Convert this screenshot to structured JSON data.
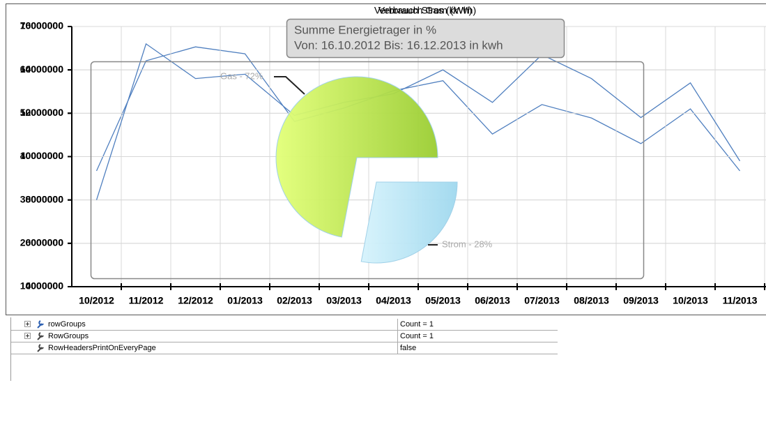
{
  "chart_data": [
    {
      "type": "line",
      "title": "Verbrauch Gas (kWh)",
      "categories": [
        "10/2012",
        "11/2012",
        "12/2012",
        "01/2013",
        "02/2013",
        "03/2013",
        "04/2013",
        "05/2013",
        "06/2013",
        "07/2013",
        "08/2013",
        "09/2013",
        "10/2013",
        "11/2013"
      ],
      "values": [
        36700000,
        62100000,
        65300000,
        63700000,
        48100000,
        51200000,
        55200000,
        57500000,
        45200000,
        52000000,
        48900000,
        43000000,
        51000000,
        36700000
      ],
      "color": "#4f7fbf",
      "ylim": [
        10000000,
        70000000
      ],
      "yticks": [
        10000000,
        20000000,
        30000000,
        40000000,
        50000000,
        60000000,
        70000000
      ],
      "grid": true
    },
    {
      "type": "line",
      "title": "Verbrauch Strom (kWh)",
      "categories": [
        "10/2012",
        "11/2012",
        "12/2012",
        "01/2013",
        "02/2013",
        "03/2013",
        "04/2013",
        "05/2013",
        "06/2013",
        "07/2013",
        "08/2013",
        "09/2013",
        "10/2013",
        "11/2013"
      ],
      "values": [
        8000000,
        15200000,
        13600000,
        13800000,
        11900000,
        12500000,
        12900000,
        14000000,
        12500000,
        14700000,
        13600000,
        11800000,
        13400000,
        9800000
      ],
      "color": "#4f7fbf",
      "ylim": [
        4000000,
        16000000
      ],
      "yticks": [
        4000000,
        6000000,
        8000000,
        10000000,
        12000000,
        14000000,
        16000000
      ],
      "grid": true
    },
    {
      "type": "pie",
      "title": [
        "Summe Energietrager in %",
        "Von: 16.10.2012 Bis: 16.12.2013 in kwh"
      ],
      "categories": [
        "Gas",
        "Strom"
      ],
      "values": [
        72,
        28
      ],
      "value_labels": [
        "Gas - 72%",
        "Strom - 28%"
      ],
      "colors": [
        "#9acd32",
        "#9fd8ee"
      ]
    }
  ],
  "property_grid": {
    "rows": [
      [
        "rowGroups",
        "Count = 1"
      ],
      [
        "RowGroups",
        "Count = 1"
      ],
      [
        "RowHeadersPrintOnEveryPage",
        "false"
      ]
    ]
  }
}
